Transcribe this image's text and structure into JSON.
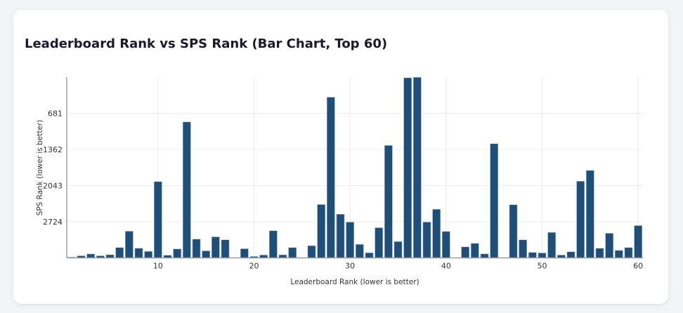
{
  "card": {
    "title": "Leaderboard Rank vs SPS Rank (Bar Chart, Top 60)"
  },
  "colors": {
    "bar": "#1f4e79",
    "bar_outline": "#a9c4dd",
    "grid": "#ececec",
    "axis": "#9e9e9e",
    "background": "#f3f4f6",
    "card": "#ffffff"
  },
  "chart_data": {
    "type": "bar",
    "title": "Leaderboard Rank vs SPS Rank (Bar Chart, Top 60)",
    "xlabel": "Leaderboard Rank (lower is better)",
    "ylabel": "SPS Rank (lower is better)",
    "x": [
      1,
      2,
      3,
      4,
      5,
      6,
      7,
      8,
      9,
      10,
      11,
      12,
      13,
      14,
      15,
      16,
      17,
      18,
      19,
      20,
      21,
      22,
      23,
      24,
      25,
      26,
      27,
      28,
      29,
      30,
      31,
      32,
      33,
      34,
      35,
      36,
      37,
      38,
      39,
      40,
      41,
      42,
      43,
      44,
      45,
      46,
      47,
      48,
      49,
      50,
      51,
      52,
      53,
      54,
      55,
      56,
      57,
      58,
      59,
      60
    ],
    "values": [
      3391,
      3365,
      3331,
      3365,
      3345,
      3210,
      2902,
      3223,
      3281,
      1967,
      3355,
      3236,
      843,
      3051,
      3272,
      3008,
      3064,
      null,
      3232,
      3378,
      3351,
      2893,
      3347,
      3210,
      null,
      3175,
      2399,
      377,
      2581,
      2730,
      3149,
      3308,
      2836,
      1285,
      3096,
      11,
      2,
      2730,
      2488,
      2906,
      null,
      3197,
      3131,
      3329,
      1253,
      null,
      2403,
      3064,
      3302,
      3312,
      2924,
      3351,
      3289,
      1959,
      1756,
      3223,
      2941,
      3263,
      3210,
      2796
    ],
    "x_ticks": [
      10,
      20,
      30,
      40,
      50,
      60
    ],
    "y_ticks": [
      681,
      1362,
      2043,
      2724
    ],
    "xlim": [
      0.5,
      60.5
    ],
    "ylim": [
      3405,
      0
    ],
    "y_reversed": true,
    "grid": true,
    "legend": null
  }
}
